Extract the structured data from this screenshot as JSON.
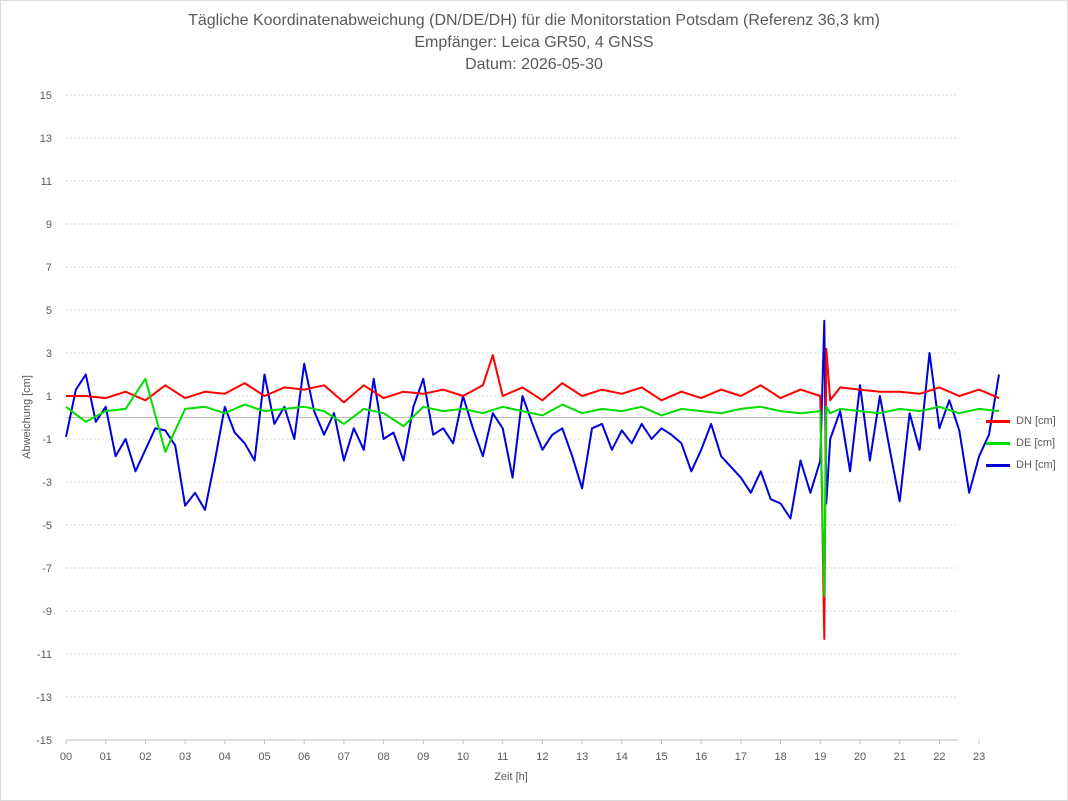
{
  "chart_data": {
    "type": "line",
    "title": "Tägliche Koordinatenabweichung (DN/DE/DH) für die Monitorstation Potsdam (Referenz 36,3 km)",
    "subtitle": "Empfänger: Leica GR50, 4 GNSS",
    "date_line": "Datum: 2026-05-30",
    "xlabel": "Zeit [h]",
    "ylabel": "Abweichung [cm]",
    "xlim": [
      0,
      24
    ],
    "ylim": [
      -15,
      15
    ],
    "x_ticks": [
      "00",
      "01",
      "02",
      "03",
      "04",
      "05",
      "06",
      "07",
      "08",
      "09",
      "10",
      "11",
      "12",
      "13",
      "14",
      "15",
      "16",
      "17",
      "18",
      "19",
      "20",
      "21",
      "22",
      "23"
    ],
    "y_ticks": [
      "15",
      "13",
      "11",
      "9",
      "7",
      "5",
      "3",
      "1",
      "-1",
      "-3",
      "-5",
      "-7",
      "-9",
      "-11",
      "-13",
      "-15"
    ],
    "grid": true,
    "legend_position": "right",
    "series": [
      {
        "name": "DN [cm]",
        "color": "#ff0000",
        "x": [
          0,
          0.5,
          1,
          1.5,
          2,
          2.5,
          3,
          3.5,
          4,
          4.5,
          5,
          5.5,
          6,
          6.5,
          7,
          7.5,
          8,
          8.5,
          9,
          9.5,
          10,
          10.5,
          10.75,
          11,
          11.5,
          12,
          12.5,
          13,
          13.5,
          14,
          14.5,
          15,
          15.5,
          16,
          16.5,
          17,
          17.5,
          18,
          18.5,
          19,
          19.1,
          19.15,
          19.25,
          19.5,
          20,
          20.5,
          21,
          21.5,
          22,
          22.5,
          23,
          23.5
        ],
        "values": [
          1,
          1,
          0.9,
          1.2,
          0.8,
          1.5,
          0.9,
          1.2,
          1.1,
          1.6,
          1.0,
          1.4,
          1.3,
          1.5,
          0.7,
          1.5,
          0.9,
          1.2,
          1.1,
          1.3,
          1.0,
          1.5,
          2.9,
          1.0,
          1.4,
          0.8,
          1.6,
          1.0,
          1.3,
          1.1,
          1.4,
          0.8,
          1.2,
          0.9,
          1.3,
          1.0,
          1.5,
          0.9,
          1.3,
          1.0,
          -10.3,
          3.2,
          0.8,
          1.4,
          1.3,
          1.2,
          1.2,
          1.1,
          1.4,
          1.0,
          1.3,
          0.9
        ]
      },
      {
        "name": "DE [cm]",
        "color": "#00dd00",
        "x": [
          0,
          0.5,
          1,
          1.5,
          2,
          2.5,
          3,
          3.5,
          4,
          4.5,
          5,
          5.5,
          6,
          6.5,
          7,
          7.5,
          8,
          8.5,
          9,
          9.5,
          10,
          10.5,
          11,
          11.5,
          12,
          12.5,
          13,
          13.5,
          14,
          14.5,
          15,
          15.5,
          16,
          16.5,
          17,
          17.5,
          18,
          18.5,
          19,
          19.1,
          19.15,
          19.25,
          19.5,
          20,
          20.5,
          21,
          21.5,
          22,
          22.5,
          23,
          23.5
        ],
        "values": [
          0.5,
          -0.2,
          0.3,
          0.4,
          1.8,
          -1.6,
          0.4,
          0.5,
          0.2,
          0.6,
          0.3,
          0.4,
          0.5,
          0.3,
          -0.3,
          0.4,
          0.2,
          -0.4,
          0.5,
          0.3,
          0.4,
          0.2,
          0.5,
          0.3,
          0.1,
          0.6,
          0.2,
          0.4,
          0.3,
          0.5,
          0.1,
          0.4,
          0.3,
          0.2,
          0.4,
          0.5,
          0.3,
          0.2,
          0.3,
          -8.3,
          0.5,
          0.2,
          0.4,
          0.3,
          0.2,
          0.4,
          0.3,
          0.5,
          0.2,
          0.4,
          0.3
        ]
      },
      {
        "name": "DH [cm]",
        "color": "#0000dd",
        "x": [
          0,
          0.25,
          0.5,
          0.75,
          1,
          1.25,
          1.5,
          1.75,
          2,
          2.25,
          2.5,
          2.75,
          3,
          3.25,
          3.5,
          3.75,
          4,
          4.25,
          4.5,
          4.75,
          5,
          5.25,
          5.5,
          5.75,
          6,
          6.25,
          6.5,
          6.75,
          7,
          7.25,
          7.5,
          7.75,
          8,
          8.25,
          8.5,
          8.75,
          9,
          9.25,
          9.5,
          9.75,
          10,
          10.25,
          10.5,
          10.75,
          11,
          11.25,
          11.5,
          11.75,
          12,
          12.25,
          12.5,
          12.75,
          13,
          13.25,
          13.5,
          13.75,
          14,
          14.25,
          14.5,
          14.75,
          15,
          15.25,
          15.5,
          15.75,
          16,
          16.25,
          16.5,
          16.75,
          17,
          17.25,
          17.5,
          17.75,
          18,
          18.25,
          18.5,
          18.75,
          19,
          19.1,
          19.15,
          19.25,
          19.5,
          19.75,
          20,
          20.25,
          20.5,
          20.75,
          21,
          21.25,
          21.5,
          21.75,
          22,
          22.25,
          22.5,
          22.75,
          23,
          23.25,
          23.5
        ],
        "values": [
          -0.9,
          1.3,
          2.0,
          -0.2,
          0.5,
          -1.8,
          -1.0,
          -2.5,
          -1.5,
          -0.5,
          -0.6,
          -1.3,
          -4.1,
          -3.5,
          -4.3,
          -2.0,
          0.5,
          -0.7,
          -1.2,
          -2.0,
          2.0,
          -0.3,
          0.5,
          -1.0,
          2.5,
          0.3,
          -0.8,
          0.2,
          -2.0,
          -0.5,
          -1.5,
          1.8,
          -1.0,
          -0.7,
          -2.0,
          0.5,
          1.8,
          -0.8,
          -0.5,
          -1.2,
          1.0,
          -0.5,
          -1.8,
          0.2,
          -0.5,
          -2.8,
          1.0,
          -0.3,
          -1.5,
          -0.8,
          -0.5,
          -1.8,
          -3.3,
          -0.5,
          -0.3,
          -1.5,
          -0.6,
          -1.2,
          -0.3,
          -1.0,
          -0.5,
          -0.8,
          -1.2,
          -2.5,
          -1.5,
          -0.3,
          -1.8,
          -2.3,
          -2.8,
          -3.5,
          -2.5,
          -3.8,
          -4.0,
          -4.7,
          -2.0,
          -3.5,
          -2.0,
          4.5,
          -4.0,
          -1.0,
          0.3,
          -2.5,
          1.5,
          -2.0,
          1.0,
          -1.5,
          -3.9,
          0.2,
          -1.5,
          3.0,
          -0.5,
          0.8,
          -0.6,
          -3.5,
          -1.8,
          -0.8,
          2.0
        ]
      }
    ]
  }
}
